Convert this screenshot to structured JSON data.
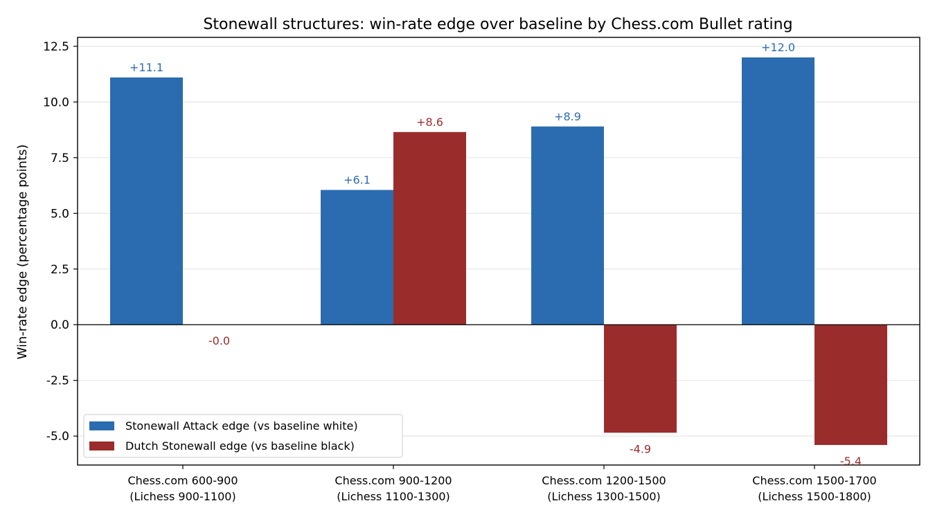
{
  "chart_data": {
    "type": "bar",
    "title": "Stonewall structures: win-rate edge over baseline by Chess.com Bullet rating",
    "xlabel": "",
    "ylabel": "Win-rate edge (percentage points)",
    "categories": [
      [
        "Chess.com 600-900",
        "(Lichess 900-1100)"
      ],
      [
        "Chess.com 900-1200",
        "(Lichess 1100-1300)"
      ],
      [
        "Chess.com 1200-1500",
        "(Lichess 1300-1500)"
      ],
      [
        "Chess.com 1500-1700",
        "(Lichess 1500-1800)"
      ]
    ],
    "ylim": [
      -6.3,
      12.9
    ],
    "yticks": [
      -5.0,
      -2.5,
      0.0,
      2.5,
      5.0,
      7.5,
      10.0,
      12.5
    ],
    "ytick_labels": [
      "-5.0",
      "-2.5",
      "0.0",
      "2.5",
      "5.0",
      "7.5",
      "10.0",
      "12.5"
    ],
    "grid": "y",
    "legend_position": "lower-left",
    "series": [
      {
        "name": "Stonewall Attack edge (vs baseline white)",
        "color": "#2b6cb0",
        "values": [
          11.1,
          6.05,
          8.9,
          12.0
        ],
        "labels": [
          "+11.1",
          "+6.1",
          "+8.9",
          "+12.0"
        ]
      },
      {
        "name": "Dutch Stonewall edge (vs baseline black)",
        "color": "#9b2c2c",
        "values": [
          0.0,
          8.65,
          -4.85,
          -5.4
        ],
        "labels": [
          "-0.0",
          "+8.6",
          "-4.9",
          "-5.4"
        ]
      }
    ]
  }
}
